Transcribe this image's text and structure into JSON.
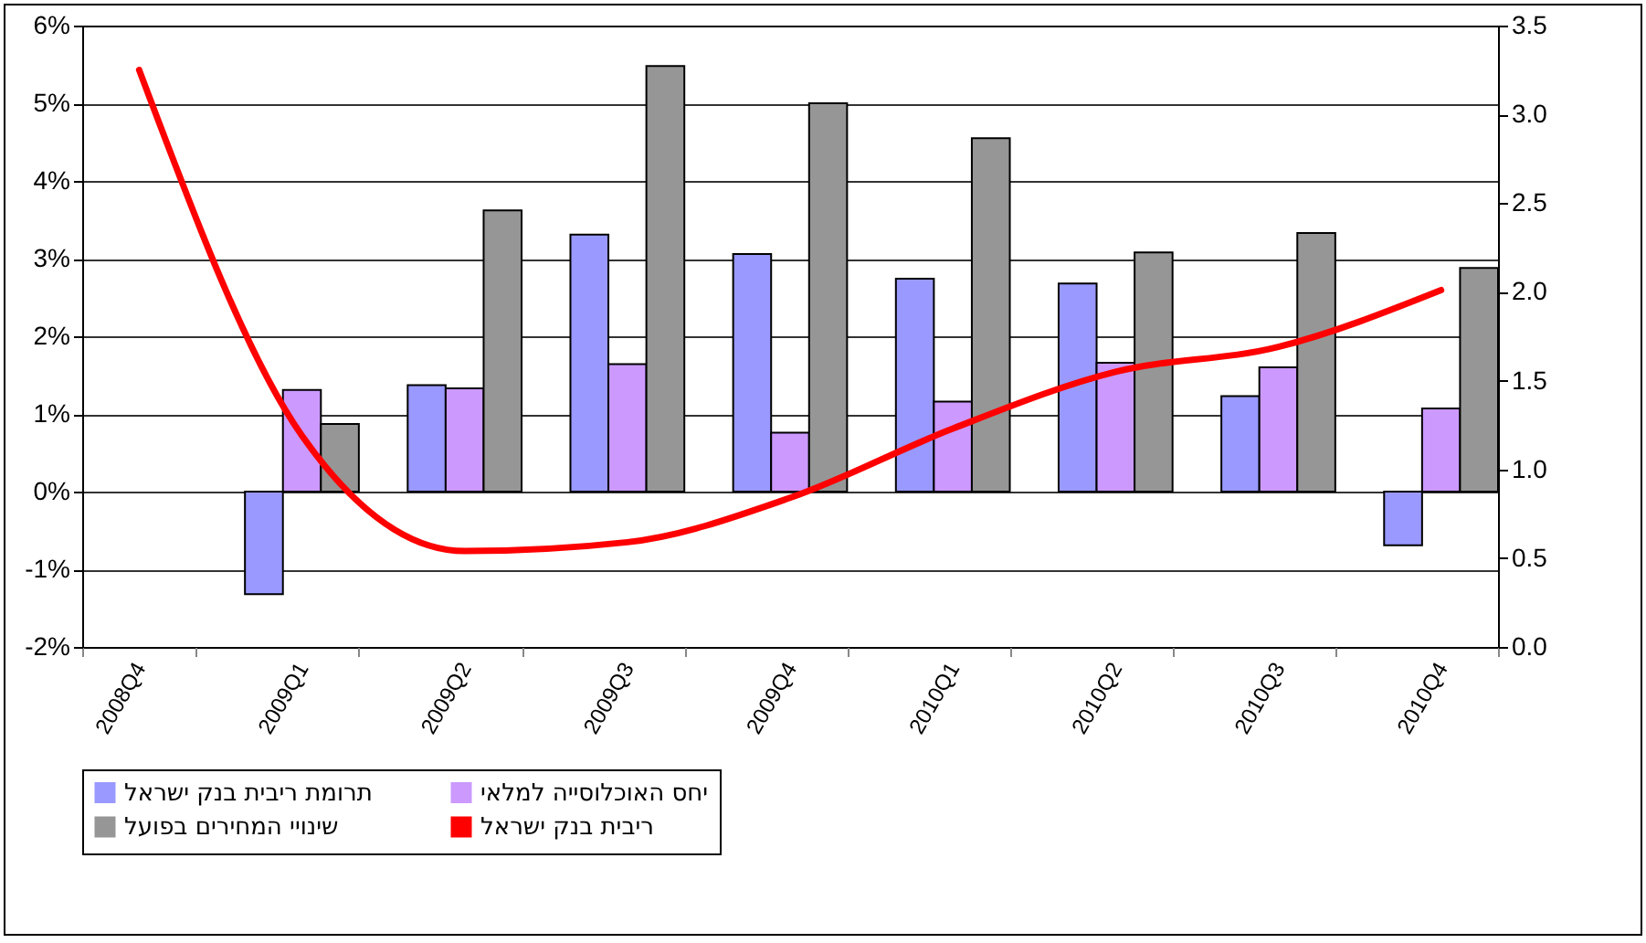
{
  "chart_data": {
    "type": "bar",
    "categories": [
      "2008Q4",
      "2009Q1",
      "2009Q2",
      "2009Q3",
      "2009Q4",
      "2010Q1",
      "2010Q2",
      "2010Q3",
      "2010Q4"
    ],
    "series": [
      {
        "name": "תרומת ריבית בנק ישראל",
        "color": "#9999ff",
        "values": [
          null,
          -1.32,
          1.37,
          3.31,
          3.06,
          2.74,
          2.68,
          1.23,
          -0.69
        ]
      },
      {
        "name": "יחס האוכלוסייה למלאי",
        "color": "#cc99ff",
        "values": [
          null,
          1.31,
          1.33,
          1.64,
          0.76,
          1.16,
          1.66,
          1.6,
          1.07
        ]
      },
      {
        "name": "שינויי המחירים בפועל",
        "color": "#969696",
        "values": [
          null,
          0.87,
          3.62,
          5.48,
          5.0,
          4.55,
          3.08,
          3.33,
          2.88
        ]
      },
      {
        "name": "ריבית בנק ישראל",
        "type": "line",
        "axis": "y2",
        "color": "#ff0000",
        "values": [
          3.25,
          1.19,
          0.54,
          0.59,
          0.84,
          1.23,
          1.55,
          1.69,
          2.01
        ]
      }
    ],
    "ylim": [
      -2,
      6
    ],
    "yticks": [
      {
        "value": -2,
        "label": "-2%"
      },
      {
        "value": -1,
        "label": "-1%"
      },
      {
        "value": 0,
        "label": "0%"
      },
      {
        "value": 1,
        "label": "1%"
      },
      {
        "value": 2,
        "label": "2%"
      },
      {
        "value": 3,
        "label": "3%"
      },
      {
        "value": 4,
        "label": "4%"
      },
      {
        "value": 5,
        "label": "5%"
      },
      {
        "value": 6,
        "label": "6%"
      }
    ],
    "y2lim": [
      0,
      3.5
    ],
    "y2ticks": [
      {
        "value": 0,
        "label": "0.0"
      },
      {
        "value": 0.5,
        "label": "0.5"
      },
      {
        "value": 1,
        "label": "1.0"
      },
      {
        "value": 1.5,
        "label": "1.5"
      },
      {
        "value": 2,
        "label": "2.0"
      },
      {
        "value": 2.5,
        "label": "2.5"
      },
      {
        "value": 3,
        "label": "3.0"
      },
      {
        "value": 3.5,
        "label": "3.5"
      }
    ],
    "grid": "y",
    "legend": "bottom",
    "line_style": "solid",
    "marker": "none"
  }
}
